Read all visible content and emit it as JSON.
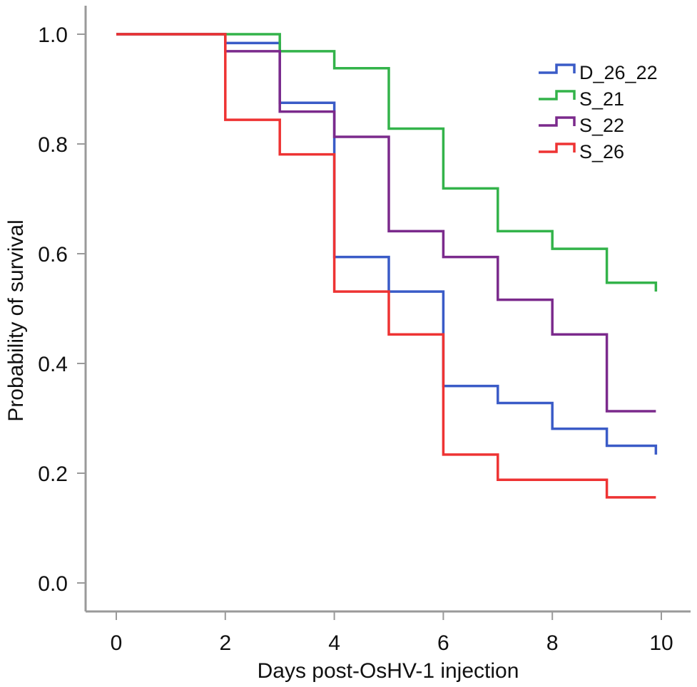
{
  "chart_data": {
    "type": "line",
    "step": true,
    "xlabel": "Days post-OsHV-1 injection",
    "ylabel": "Probability of survival",
    "xlim": [
      0,
      10
    ],
    "ylim": [
      0,
      1
    ],
    "xticks": [
      "0",
      "2",
      "4",
      "6",
      "8",
      "10"
    ],
    "yticks": [
      "0.0",
      "0.2",
      "0.4",
      "0.6",
      "0.8",
      "1.0"
    ],
    "grid": false,
    "legend_position": "top-right",
    "series": [
      {
        "name": "D_26_22",
        "color": "#3a5bc7",
        "x": [
          0,
          2,
          3,
          4,
          5,
          6,
          7,
          8,
          9,
          9.9
        ],
        "y": [
          1.0,
          0.984,
          0.875,
          0.594,
          0.531,
          0.359,
          0.328,
          0.281,
          0.25,
          0.234
        ]
      },
      {
        "name": "S_21",
        "color": "#33b34a",
        "x": [
          0,
          3,
          4,
          5,
          6,
          7,
          8,
          9,
          9.9
        ],
        "y": [
          1.0,
          0.969,
          0.938,
          0.828,
          0.719,
          0.641,
          0.609,
          0.547,
          0.531
        ]
      },
      {
        "name": "S_22",
        "color": "#7b2a8c",
        "x": [
          0,
          2,
          3,
          4,
          5,
          6,
          7,
          8,
          9,
          9.9
        ],
        "y": [
          1.0,
          0.969,
          0.859,
          0.813,
          0.641,
          0.594,
          0.516,
          0.453,
          0.313,
          0.313
        ]
      },
      {
        "name": "S_26",
        "color": "#ee3333",
        "x": [
          0,
          2,
          3,
          4,
          5,
          6,
          7,
          9,
          9.9
        ],
        "y": [
          1.0,
          0.844,
          0.781,
          0.531,
          0.453,
          0.234,
          0.188,
          0.156,
          0.156
        ]
      }
    ]
  }
}
